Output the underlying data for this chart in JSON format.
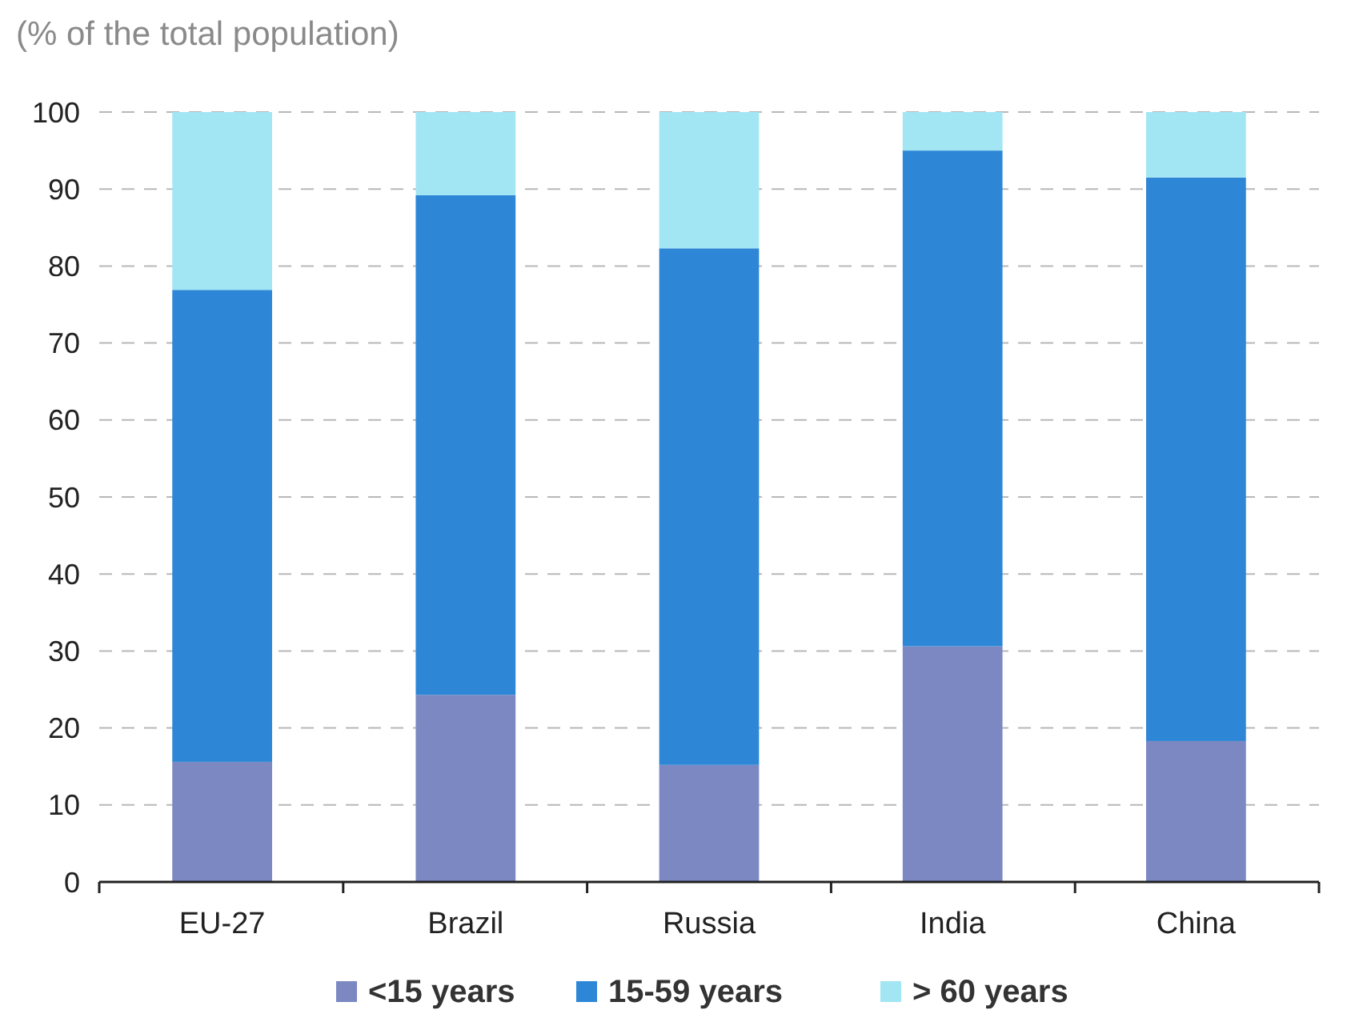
{
  "chart_data": {
    "type": "bar",
    "stacked": true,
    "title": "(% of the total population)",
    "categories": [
      "EU-27",
      "Brazil",
      "Russia",
      "India",
      "China"
    ],
    "series": [
      {
        "name": "<15 years",
        "color": "#7b88c2",
        "values": [
          15.6,
          24.3,
          15.2,
          30.6,
          18.3
        ]
      },
      {
        "name": "15-59 years",
        "color": "#2e87d6",
        "values": [
          61.3,
          64.9,
          67.1,
          64.4,
          73.2
        ]
      },
      {
        "name": "> 60 years",
        "color": "#a2e6f4",
        "values": [
          23.1,
          10.8,
          17.7,
          5.0,
          8.5
        ]
      }
    ],
    "ylim": [
      0,
      100
    ],
    "yticks": [
      0,
      10,
      20,
      30,
      40,
      50,
      60,
      70,
      80,
      90,
      100
    ],
    "grid": "y",
    "legend": "bottom"
  }
}
